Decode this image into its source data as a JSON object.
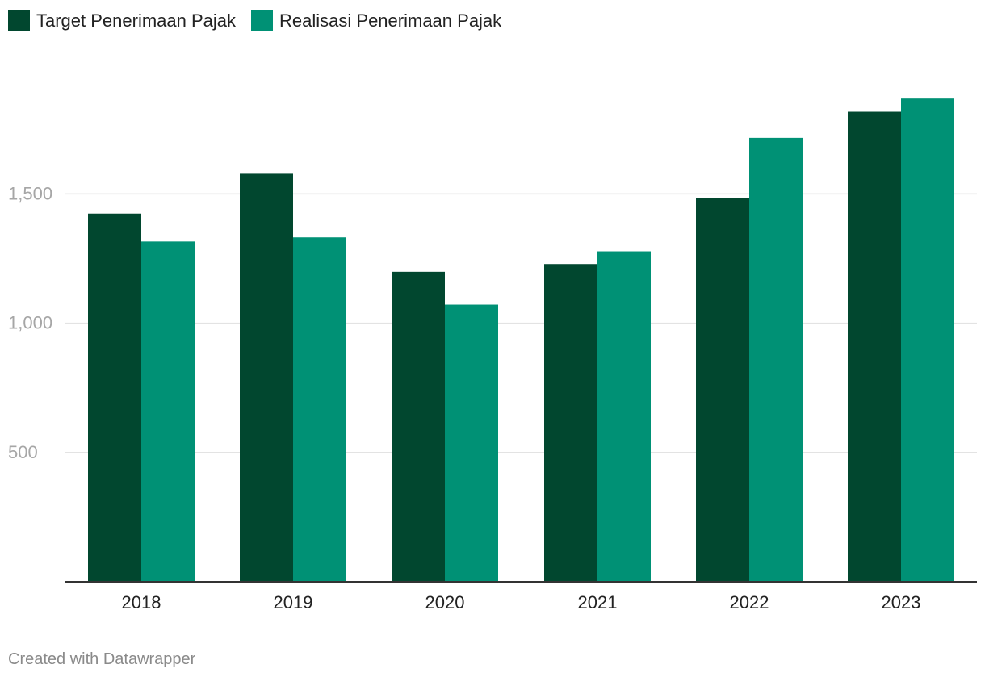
{
  "chart_data": {
    "type": "bar",
    "categories": [
      "2018",
      "2019",
      "2020",
      "2021",
      "2022",
      "2023"
    ],
    "series": [
      {
        "name": "Target Penerimaan Pajak",
        "color": "#01472f",
        "values": [
          1424,
          1578,
          1199,
          1229,
          1485,
          1818
        ]
      },
      {
        "name": "Realisasi Penerimaan Pajak",
        "color": "#009175",
        "values": [
          1316,
          1332,
          1072,
          1278,
          1717,
          1869
        ]
      }
    ],
    "ylim": [
      0,
      1900
    ],
    "yticks": [
      500,
      1000,
      1500
    ],
    "ytick_labels": [
      "500",
      "1,000",
      "1,500"
    ],
    "grid": true,
    "legend": "top-left",
    "title": "",
    "xlabel": "",
    "ylabel": ""
  },
  "footer": {
    "credit": "Created with Datawrapper"
  }
}
